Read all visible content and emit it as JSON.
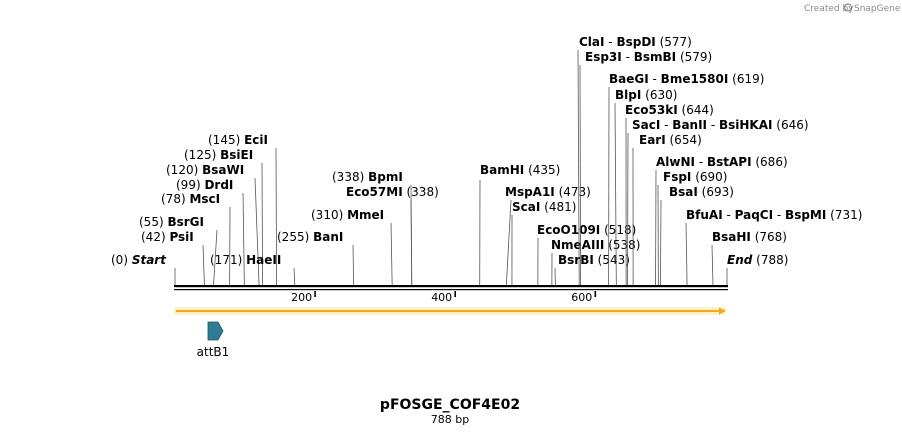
{
  "credit": {
    "prefix": "Created by",
    "brand": "SnapGene"
  },
  "plasmid": {
    "name": "pFOSGE_COF4E02",
    "length_label": "788 bp",
    "length": 788
  },
  "ruler": {
    "ticks": [
      200,
      400,
      600
    ]
  },
  "features": [
    {
      "name": "attB1",
      "start": 42,
      "end": 67,
      "direction": "forward",
      "color": "#2f7d94"
    }
  ],
  "colors": {
    "sequence_bar": "#f5a623",
    "line": "#000000"
  },
  "sites": [
    {
      "id": "start",
      "pos_label": "(0)",
      "pos": 0,
      "parts": [
        "Start"
      ],
      "italic": true
    },
    {
      "id": "psii",
      "pos_label": "(42)",
      "pos": 42,
      "parts": [
        "PsiI"
      ]
    },
    {
      "id": "bsrgi",
      "pos_label": "(55)",
      "pos": 55,
      "parts": [
        "BsrGI"
      ]
    },
    {
      "id": "msci",
      "pos_label": "(78)",
      "pos": 78,
      "parts": [
        "MscI"
      ]
    },
    {
      "id": "drdi",
      "pos_label": "(99)",
      "pos": 99,
      "parts": [
        "DrdI"
      ]
    },
    {
      "id": "bsawi",
      "pos_label": "(120)",
      "pos": 120,
      "parts": [
        "BsaWI"
      ]
    },
    {
      "id": "bsiei",
      "pos_label": "(125)",
      "pos": 125,
      "parts": [
        "BsiEI"
      ]
    },
    {
      "id": "ecii",
      "pos_label": "(145)",
      "pos": 145,
      "parts": [
        "EciI"
      ]
    },
    {
      "id": "haeii",
      "pos_label": "(171)",
      "pos": 171,
      "parts": [
        "HaeII"
      ]
    },
    {
      "id": "bani",
      "pos_label": "(255)",
      "pos": 255,
      "parts": [
        "BanI"
      ]
    },
    {
      "id": "mmei",
      "pos_label": "(310)",
      "pos": 310,
      "parts": [
        "MmeI"
      ]
    },
    {
      "id": "eco57mi",
      "pos_label": "(338)",
      "pos": 338,
      "parts": [
        "Eco57MI"
      ]
    },
    {
      "id": "bpmi",
      "pos_label": "(338)",
      "pos": 338,
      "parts": [
        "BpmI"
      ]
    },
    {
      "id": "bamhi",
      "pos_label": "(435)",
      "pos": 435,
      "parts": [
        "BamHI"
      ]
    },
    {
      "id": "mspa1i",
      "pos_label": "(473)",
      "pos": 473,
      "parts": [
        "MspA1I"
      ]
    },
    {
      "id": "scai",
      "pos_label": "(481)",
      "pos": 481,
      "parts": [
        "ScaI"
      ]
    },
    {
      "id": "ecoo109i",
      "pos_label": "(518)",
      "pos": 518,
      "parts": [
        "EcoO109I"
      ]
    },
    {
      "id": "nmeaiii",
      "pos_label": "(538)",
      "pos": 538,
      "parts": [
        "NmeAIII"
      ]
    },
    {
      "id": "bsrbi",
      "pos_label": "(543)",
      "pos": 543,
      "parts": [
        "BsrBI"
      ]
    },
    {
      "id": "clai",
      "pos_label": "(577)",
      "pos": 577,
      "parts": [
        "ClaI",
        "BspDI"
      ]
    },
    {
      "id": "esp3i",
      "pos_label": "(579)",
      "pos": 579,
      "parts": [
        "Esp3I",
        "BsmBI"
      ]
    },
    {
      "id": "baegi",
      "pos_label": "(619)",
      "pos": 619,
      "parts": [
        "BaeGI",
        "Bme1580I"
      ]
    },
    {
      "id": "blpi",
      "pos_label": "(630)",
      "pos": 630,
      "parts": [
        "BlpI"
      ]
    },
    {
      "id": "eco53ki",
      "pos_label": "(644)",
      "pos": 644,
      "parts": [
        "Eco53kI"
      ]
    },
    {
      "id": "saci",
      "pos_label": "(646)",
      "pos": 646,
      "parts": [
        "SacI",
        "BanII",
        "BsiHKAI"
      ]
    },
    {
      "id": "eari",
      "pos_label": "(654)",
      "pos": 654,
      "parts": [
        "EarI"
      ]
    },
    {
      "id": "alwni",
      "pos_label": "(686)",
      "pos": 686,
      "parts": [
        "AlwNI",
        "BstAPI"
      ]
    },
    {
      "id": "fspi",
      "pos_label": "(690)",
      "pos": 690,
      "parts": [
        "FspI"
      ]
    },
    {
      "id": "bsai",
      "pos_label": "(693)",
      "pos": 693,
      "parts": [
        "BsaI"
      ]
    },
    {
      "id": "bfuai",
      "pos_label": "(731)",
      "pos": 731,
      "parts": [
        "BfuAI",
        "PaqCI",
        "BspMI"
      ]
    },
    {
      "id": "bsahi",
      "pos_label": "(768)",
      "pos": 768,
      "parts": [
        "BsaHI"
      ]
    },
    {
      "id": "end",
      "pos_label": "(788)",
      "pos": 788,
      "parts": [
        "End"
      ],
      "italic": true
    }
  ]
}
